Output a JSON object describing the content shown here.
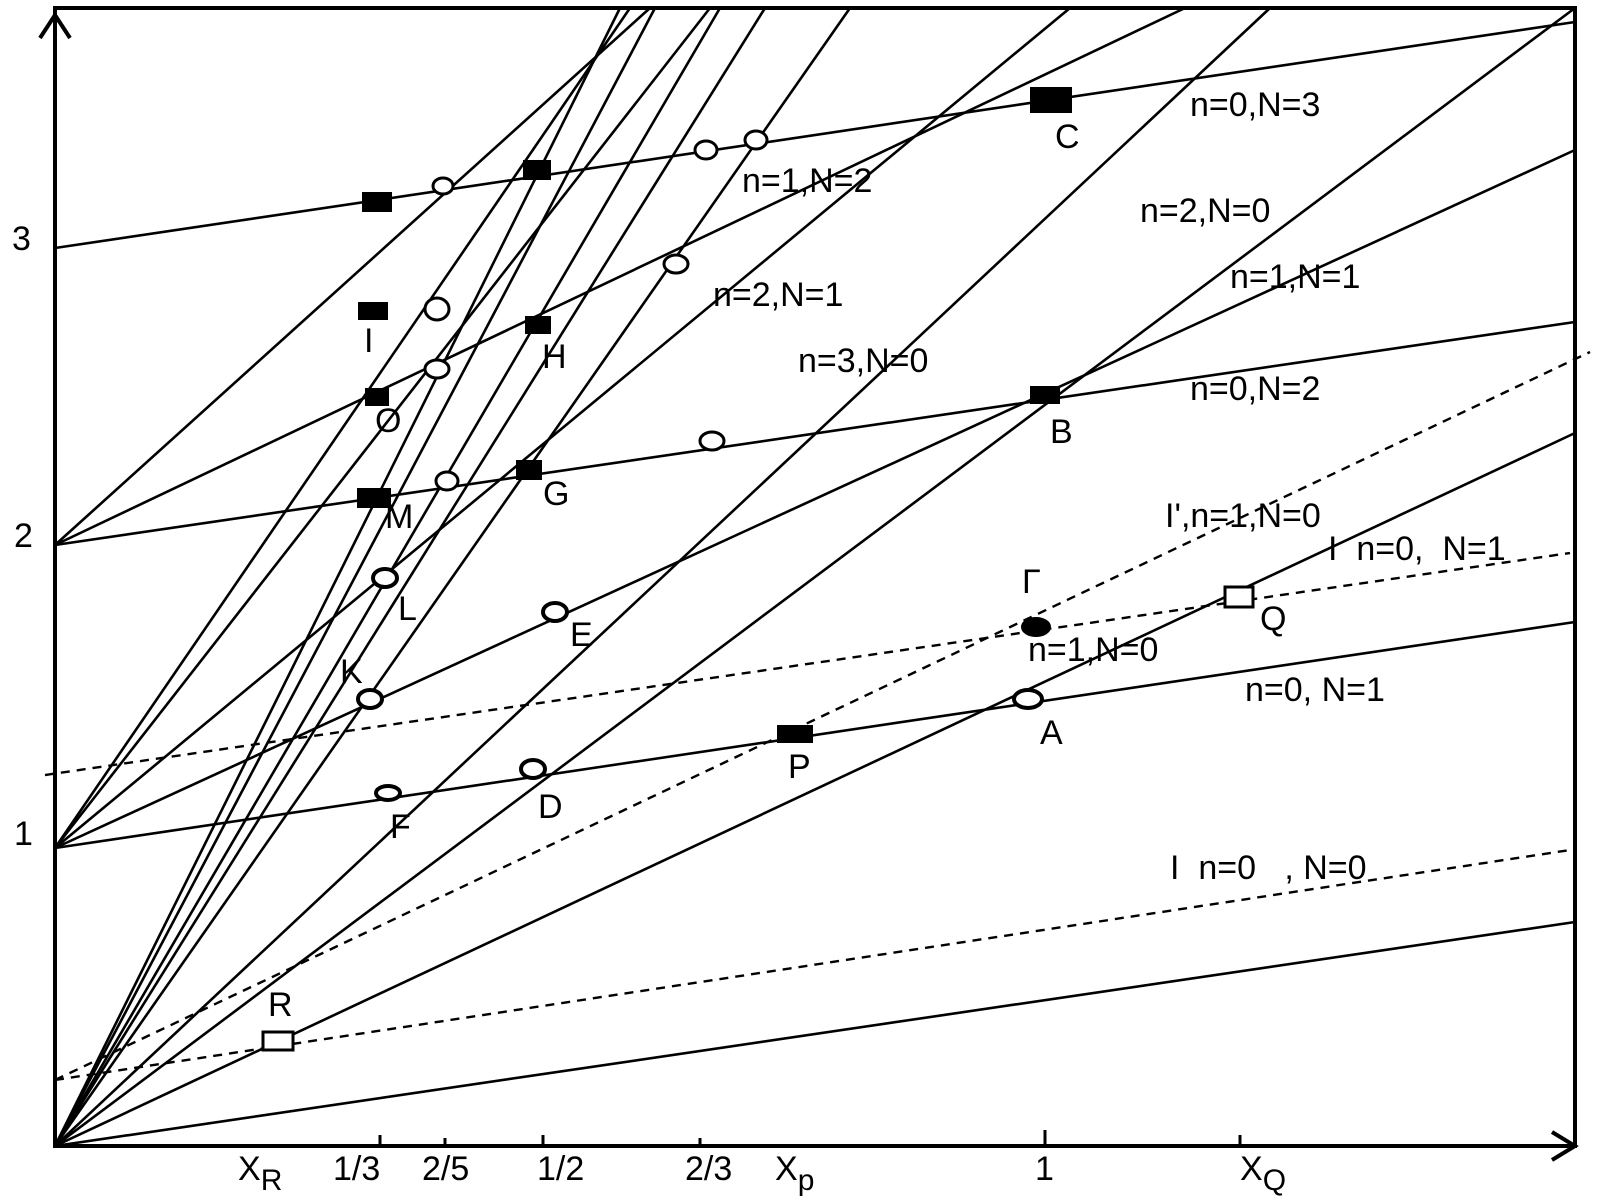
{
  "y_tick_labels": [
    "1",
    "2",
    "3"
  ],
  "x_tick_labels": {
    "xr": "X",
    "xr_sub": "R",
    "third": "1/3",
    "two_fifths": "2/5",
    "half": "1/2",
    "two_thirds": "2/3",
    "xp": "X",
    "xp_sub": "p",
    "one": "1",
    "xq": "X",
    "xq_sub": "Q"
  },
  "line_labels": {
    "n0N3": "n=0,N=3",
    "n1N2": "n=1,N=2",
    "n2N0": "n=2,N=0",
    "n1N1": "n=1,N=1",
    "n2N1": "n=2,N=1",
    "n3N0": "n=3,N=0",
    "n0N2": "n=0,N=2",
    "iprime_n1N0": "I',n=1,N=0",
    "i_n0N1_dash": "I  n=0,  N=1",
    "n1N0": "n=1,N=0",
    "n0N1": "n=0, N=1",
    "i_n0N0": "I  n=0   , N=0"
  },
  "point_labels": {
    "A": "A",
    "B": "B",
    "C": "C",
    "D": "D",
    "E": "E",
    "F": "F",
    "G": "G",
    "H": "H",
    "I": "I",
    "K": "K",
    "L": "L",
    "M": "M",
    "O": "O",
    "P": "P",
    "Q": "Q",
    "R": "R",
    "Gamma": "Γ"
  }
}
